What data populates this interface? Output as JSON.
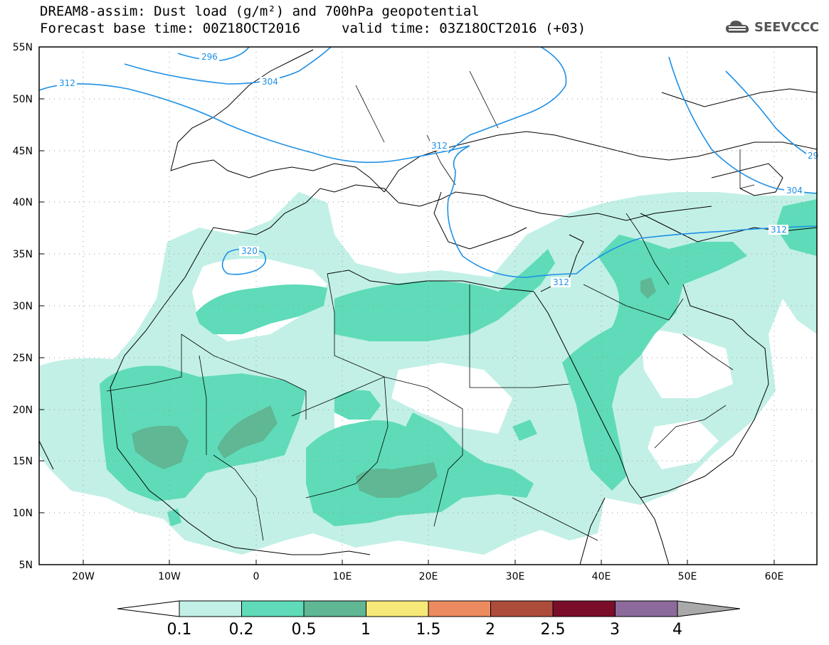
{
  "header": {
    "title_line1": "DREAM8-assim: Dust load (g/m²) and 700hPa geopotential",
    "base_time": "Forecast base time: 00Z18OCT2016",
    "valid_time": "valid time: 03Z18OCT2016 (+03)",
    "logo": "SEEVCCC"
  },
  "map": {
    "lat_labels": [
      "55N",
      "50N",
      "45N",
      "40N",
      "35N",
      "30N",
      "25N",
      "20N",
      "15N",
      "10N",
      "5N"
    ],
    "lon_labels": [
      "20W",
      "10W",
      "0",
      "10E",
      "20E",
      "30E",
      "40E",
      "50E",
      "60E"
    ],
    "contour_labels": [
      "312",
      "296",
      "304",
      "312",
      "320",
      "312",
      "304",
      "312",
      "29"
    ]
  },
  "colorbar": {
    "levels": [
      "0.1",
      "0.2",
      "0.5",
      "1",
      "1.5",
      "2",
      "2.5",
      "3",
      "4"
    ],
    "colors": [
      "#c2f0e6",
      "#5fdbb9",
      "#5fb794",
      "#f6e978",
      "#ec8b5f",
      "#ae4c3c",
      "#7a0e2a",
      "#8c6a9c"
    ],
    "under_color": "#ffffff",
    "over_color": "#a9a9a9"
  },
  "colors": {
    "contour": "#1e90e6",
    "coast": "#000000"
  }
}
